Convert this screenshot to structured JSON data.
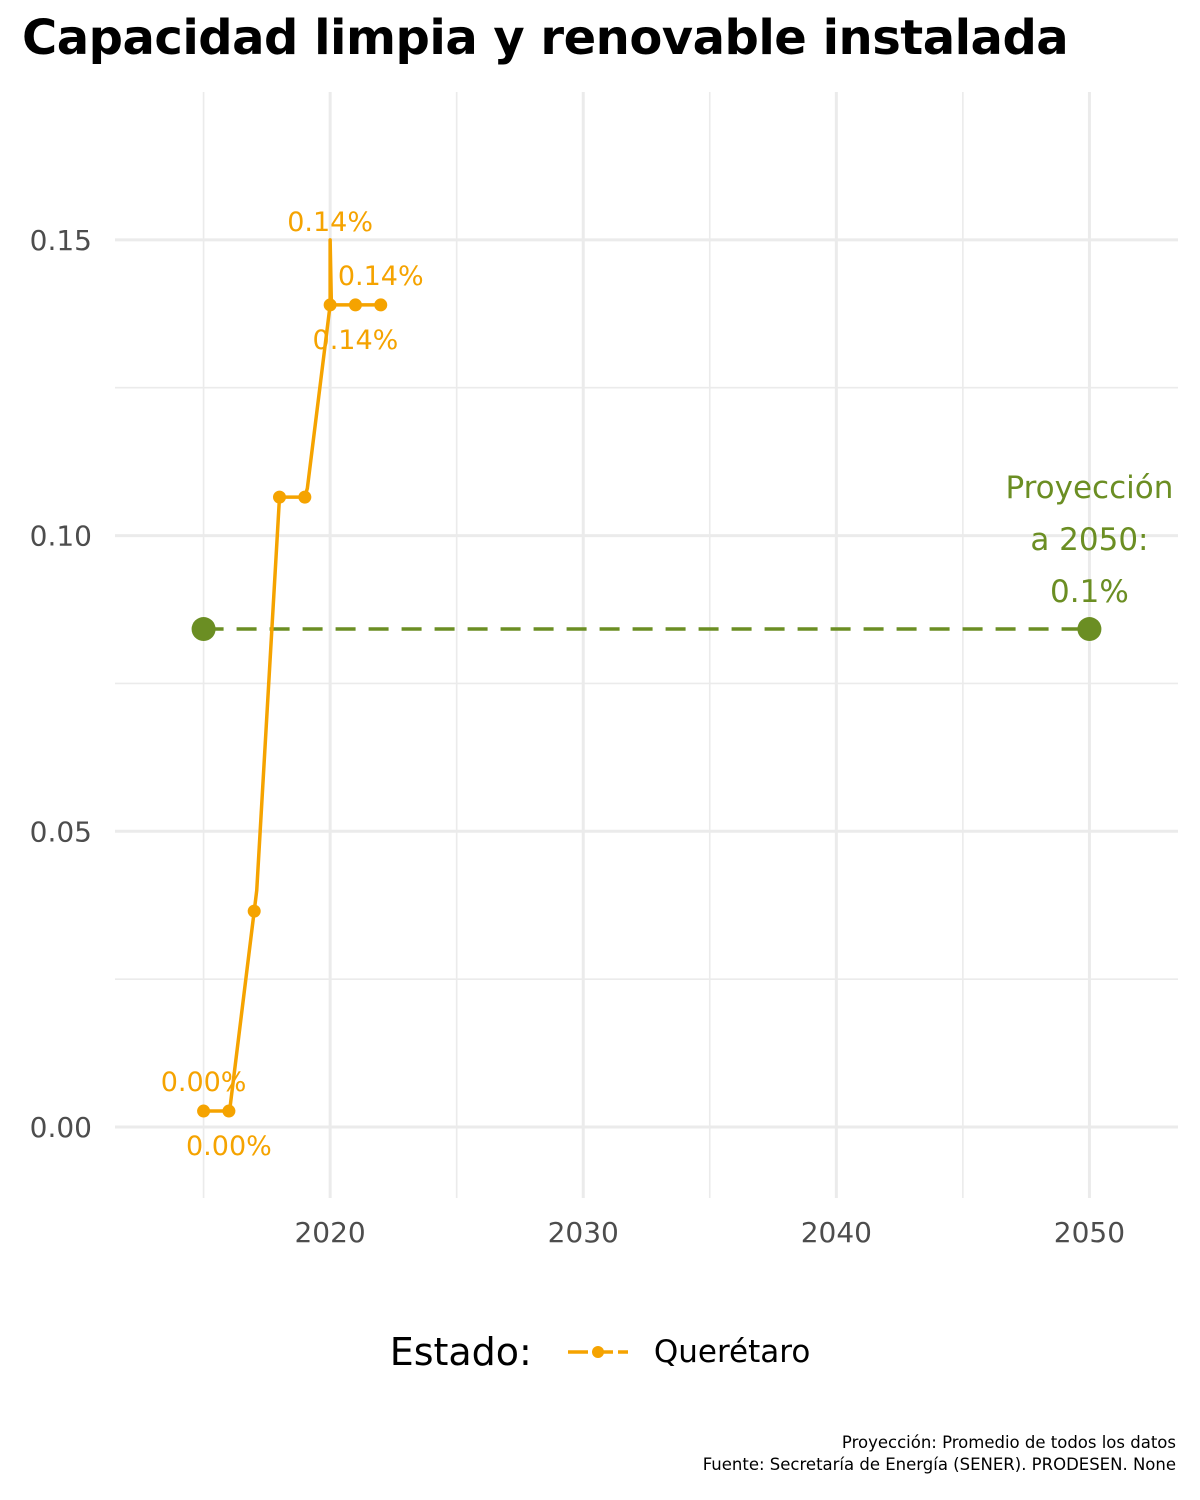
{
  "title": "Capacidad limpia y renovable instalada",
  "colors": {
    "series": "#f5a300",
    "projection": "#6b8e23",
    "grid": "#ebebeb"
  },
  "legend": {
    "title": "Estado:",
    "label": "Querétaro"
  },
  "caption": {
    "line1": "Proyección: Promedio de todos los datos",
    "line2": "Fuente: Secretaría de Energía (SENER). PRODESEN. None"
  },
  "chart_data": {
    "type": "line",
    "title": "Capacidad limpia y renovable instalada",
    "xlabel": "",
    "ylabel": "",
    "xlim": [
      2011.5,
      2053.5
    ],
    "ylim": [
      -0.012,
      0.175
    ],
    "x_ticks": [
      2020,
      2030,
      2040,
      2050
    ],
    "y_ticks": [
      0.0,
      0.05,
      0.1,
      0.15
    ],
    "x_tick_labels": [
      "2020",
      "2030",
      "2040",
      "2050"
    ],
    "y_tick_labels": [
      "0.00",
      "0.05",
      "0.10",
      "0.15"
    ],
    "grid": true,
    "legend_position": "bottom",
    "series": [
      {
        "name": "Querétaro",
        "x": [
          2015,
          2016,
          2017,
          2018,
          2019,
          2020,
          2021,
          2022
        ],
        "y": [
          0.0027,
          0.0027,
          0.0365,
          0.1065,
          0.1065,
          0.139,
          0.139,
          0.139
        ],
        "line_x": [
          2015,
          2016,
          2016,
          2016.05,
          2017,
          2017.1,
          2018,
          2018.05,
          2019,
          2019.1,
          2020,
          2020,
          2020.05,
          2021,
          2022
        ],
        "line_y": [
          0.0027,
          0.0027,
          0.0027,
          0.0035,
          0.0365,
          0.04,
          0.1065,
          0.1065,
          0.1065,
          0.108,
          0.139,
          0.15,
          0.139,
          0.139,
          0.139
        ]
      }
    ],
    "data_labels": [
      {
        "text": "0.00%",
        "x": 2015,
        "y": 0.0027,
        "pos": "above"
      },
      {
        "text": "0.00%",
        "x": 2016,
        "y": 0.0027,
        "pos": "below"
      },
      {
        "text": "0.14%",
        "x": 2020,
        "y": 0.139,
        "pos": "above-far"
      },
      {
        "text": "0.14%",
        "x": 2021,
        "y": 0.139,
        "pos": "below"
      },
      {
        "text": "0.14%",
        "x": 2022,
        "y": 0.139,
        "pos": "above"
      }
    ],
    "projection": {
      "x": [
        2015,
        2050
      ],
      "y": [
        0.0842,
        0.0842
      ],
      "label_lines": [
        "Proyección",
        "a 2050:",
        "0.1%"
      ]
    }
  }
}
